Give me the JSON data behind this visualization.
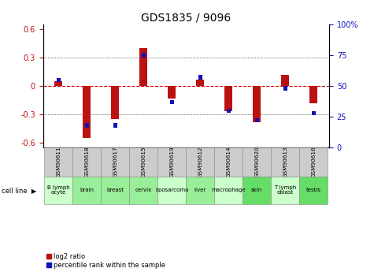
{
  "title": "GDS1835 / 9096",
  "samples": [
    "GSM90611",
    "GSM90618",
    "GSM90617",
    "GSM90615",
    "GSM90619",
    "GSM90612",
    "GSM90614",
    "GSM90620",
    "GSM90613",
    "GSM90616"
  ],
  "cell_lines": [
    "B lymph\nocyte",
    "brain",
    "breast",
    "cervix",
    "liposarcoma\n",
    "liver",
    "macrophage\n",
    "skin",
    "T lymph\noblast",
    "testis"
  ],
  "cell_line_colors": [
    "#ccffcc",
    "#99ee99",
    "#99ee99",
    "#99ee99",
    "#ccffcc",
    "#99ee99",
    "#ccffcc",
    "#66dd66",
    "#ccffcc",
    "#66dd66"
  ],
  "log2_ratio": [
    0.05,
    -0.55,
    -0.35,
    0.4,
    -0.13,
    0.07,
    -0.27,
    -0.38,
    0.12,
    -0.18
  ],
  "percentile_rank": [
    55,
    18,
    18,
    75,
    37,
    57,
    30,
    22,
    48,
    28
  ],
  "ylim": [
    -0.65,
    0.65
  ],
  "y2lim": [
    0,
    100
  ],
  "yticks": [
    -0.6,
    -0.3,
    0.0,
    0.3,
    0.6
  ],
  "y2ticks": [
    0,
    25,
    50,
    75,
    100
  ],
  "red_color": "#bb1111",
  "blue_color": "#1111bb",
  "bg_color": "#ffffff",
  "zero_line_color": "#dd0000",
  "title_fontsize": 10,
  "tick_fontsize": 7,
  "label_fontsize": 6.5
}
